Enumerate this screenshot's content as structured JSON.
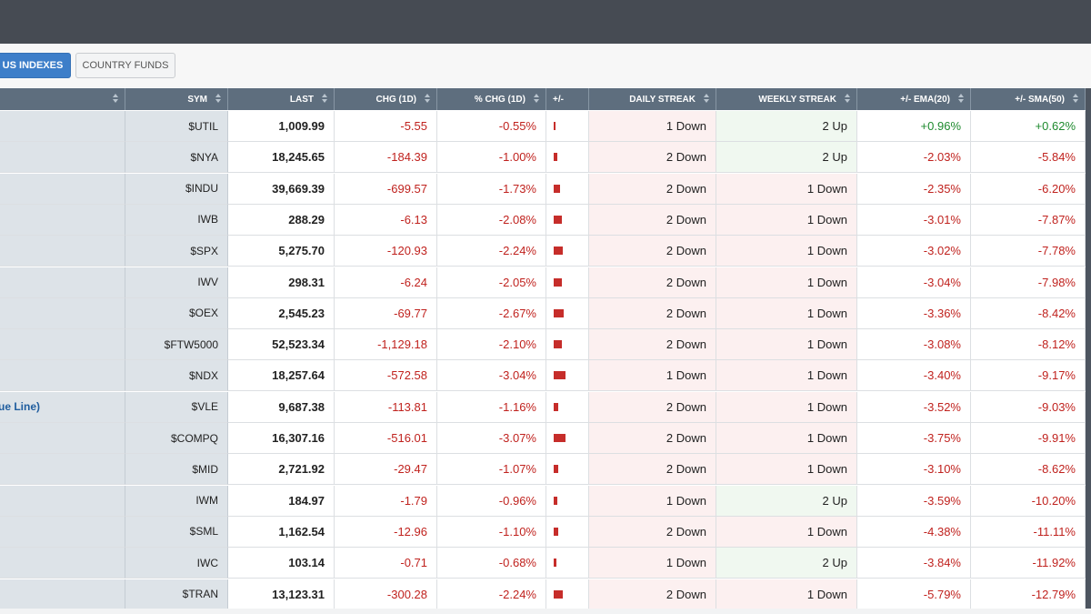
{
  "tabs": [
    {
      "label": "US INDEXES",
      "active": true
    },
    {
      "label": "COUNTRY FUNDS",
      "active": false
    }
  ],
  "columns": [
    "",
    "SYM",
    "LAST",
    "CHG (1D)",
    "% CHG (1D)",
    "+/-",
    "DAILY STREAK",
    "WEEKLY STREAK",
    "+/- EMA(20)",
    "+/- SMA(50)"
  ],
  "colors": {
    "topbar": "#464b53",
    "header": "#5e6e7e",
    "active_tab": "#3d7ec9",
    "negative": "#c0221e",
    "positive": "#1e8a2e"
  },
  "rows": [
    {
      "name": "",
      "sym": "$UTIL",
      "last": "1,009.99",
      "chg": "-5.55",
      "pct": "-0.55%",
      "pct_value": -0.55,
      "daily": "1 Down",
      "weekly": "2 Up",
      "ema": "+0.96%",
      "sma": "+0.62%"
    },
    {
      "name": "",
      "sym": "$NYA",
      "last": "18,245.65",
      "chg": "-184.39",
      "pct": "-1.00%",
      "pct_value": -1.0,
      "daily": "2 Down",
      "weekly": "2 Up",
      "ema": "-2.03%",
      "sma": "-5.84%"
    },
    {
      "name": "",
      "sym": "$INDU",
      "last": "39,669.39",
      "chg": "-699.57",
      "pct": "-1.73%",
      "pct_value": -1.73,
      "daily": "2 Down",
      "weekly": "1 Down",
      "ema": "-2.35%",
      "sma": "-6.20%"
    },
    {
      "name": "",
      "sym": "IWB",
      "last": "288.29",
      "chg": "-6.13",
      "pct": "-2.08%",
      "pct_value": -2.08,
      "daily": "2 Down",
      "weekly": "1 Down",
      "ema": "-3.01%",
      "sma": "-7.87%"
    },
    {
      "name": "",
      "sym": "$SPX",
      "last": "5,275.70",
      "chg": "-120.93",
      "pct": "-2.24%",
      "pct_value": -2.24,
      "daily": "2 Down",
      "weekly": "1 Down",
      "ema": "-3.02%",
      "sma": "-7.78%"
    },
    {
      "name": "",
      "sym": "IWV",
      "last": "298.31",
      "chg": "-6.24",
      "pct": "-2.05%",
      "pct_value": -2.05,
      "daily": "2 Down",
      "weekly": "1 Down",
      "ema": "-3.04%",
      "sma": "-7.98%"
    },
    {
      "name": "",
      "sym": "$OEX",
      "last": "2,545.23",
      "chg": "-69.77",
      "pct": "-2.67%",
      "pct_value": -2.67,
      "daily": "2 Down",
      "weekly": "1 Down",
      "ema": "-3.36%",
      "sma": "-8.42%"
    },
    {
      "name": "",
      "sym": "$FTW5000",
      "last": "52,523.34",
      "chg": "-1,129.18",
      "pct": "-2.10%",
      "pct_value": -2.1,
      "daily": "2 Down",
      "weekly": "1 Down",
      "ema": "-3.08%",
      "sma": "-8.12%"
    },
    {
      "name": "",
      "sym": "$NDX",
      "last": "18,257.64",
      "chg": "-572.58",
      "pct": "-3.04%",
      "pct_value": -3.04,
      "daily": "1 Down",
      "weekly": "1 Down",
      "ema": "-3.40%",
      "sma": "-9.17%"
    },
    {
      "name": "ue Line)",
      "sym": "$VLE",
      "last": "9,687.38",
      "chg": "-113.81",
      "pct": "-1.16%",
      "pct_value": -1.16,
      "daily": "2 Down",
      "weekly": "1 Down",
      "ema": "-3.52%",
      "sma": "-9.03%"
    },
    {
      "name": "",
      "sym": "$COMPQ",
      "last": "16,307.16",
      "chg": "-516.01",
      "pct": "-3.07%",
      "pct_value": -3.07,
      "daily": "2 Down",
      "weekly": "1 Down",
      "ema": "-3.75%",
      "sma": "-9.91%"
    },
    {
      "name": "",
      "sym": "$MID",
      "last": "2,721.92",
      "chg": "-29.47",
      "pct": "-1.07%",
      "pct_value": -1.07,
      "daily": "2 Down",
      "weekly": "1 Down",
      "ema": "-3.10%",
      "sma": "-8.62%"
    },
    {
      "name": "",
      "sym": "IWM",
      "last": "184.97",
      "chg": "-1.79",
      "pct": "-0.96%",
      "pct_value": -0.96,
      "daily": "1 Down",
      "weekly": "2 Up",
      "ema": "-3.59%",
      "sma": "-10.20%"
    },
    {
      "name": "",
      "sym": "$SML",
      "last": "1,162.54",
      "chg": "-12.96",
      "pct": "-1.10%",
      "pct_value": -1.1,
      "daily": "2 Down",
      "weekly": "1 Down",
      "ema": "-4.38%",
      "sma": "-11.11%"
    },
    {
      "name": "",
      "sym": "IWC",
      "last": "103.14",
      "chg": "-0.71",
      "pct": "-0.68%",
      "pct_value": -0.68,
      "daily": "1 Down",
      "weekly": "2 Up",
      "ema": "-3.84%",
      "sma": "-11.92%"
    },
    {
      "name": "",
      "sym": "$TRAN",
      "last": "13,123.31",
      "chg": "-300.28",
      "pct": "-2.24%",
      "pct_value": -2.24,
      "daily": "2 Down",
      "weekly": "1 Down",
      "ema": "-5.79%",
      "sma": "-12.79%"
    }
  ]
}
